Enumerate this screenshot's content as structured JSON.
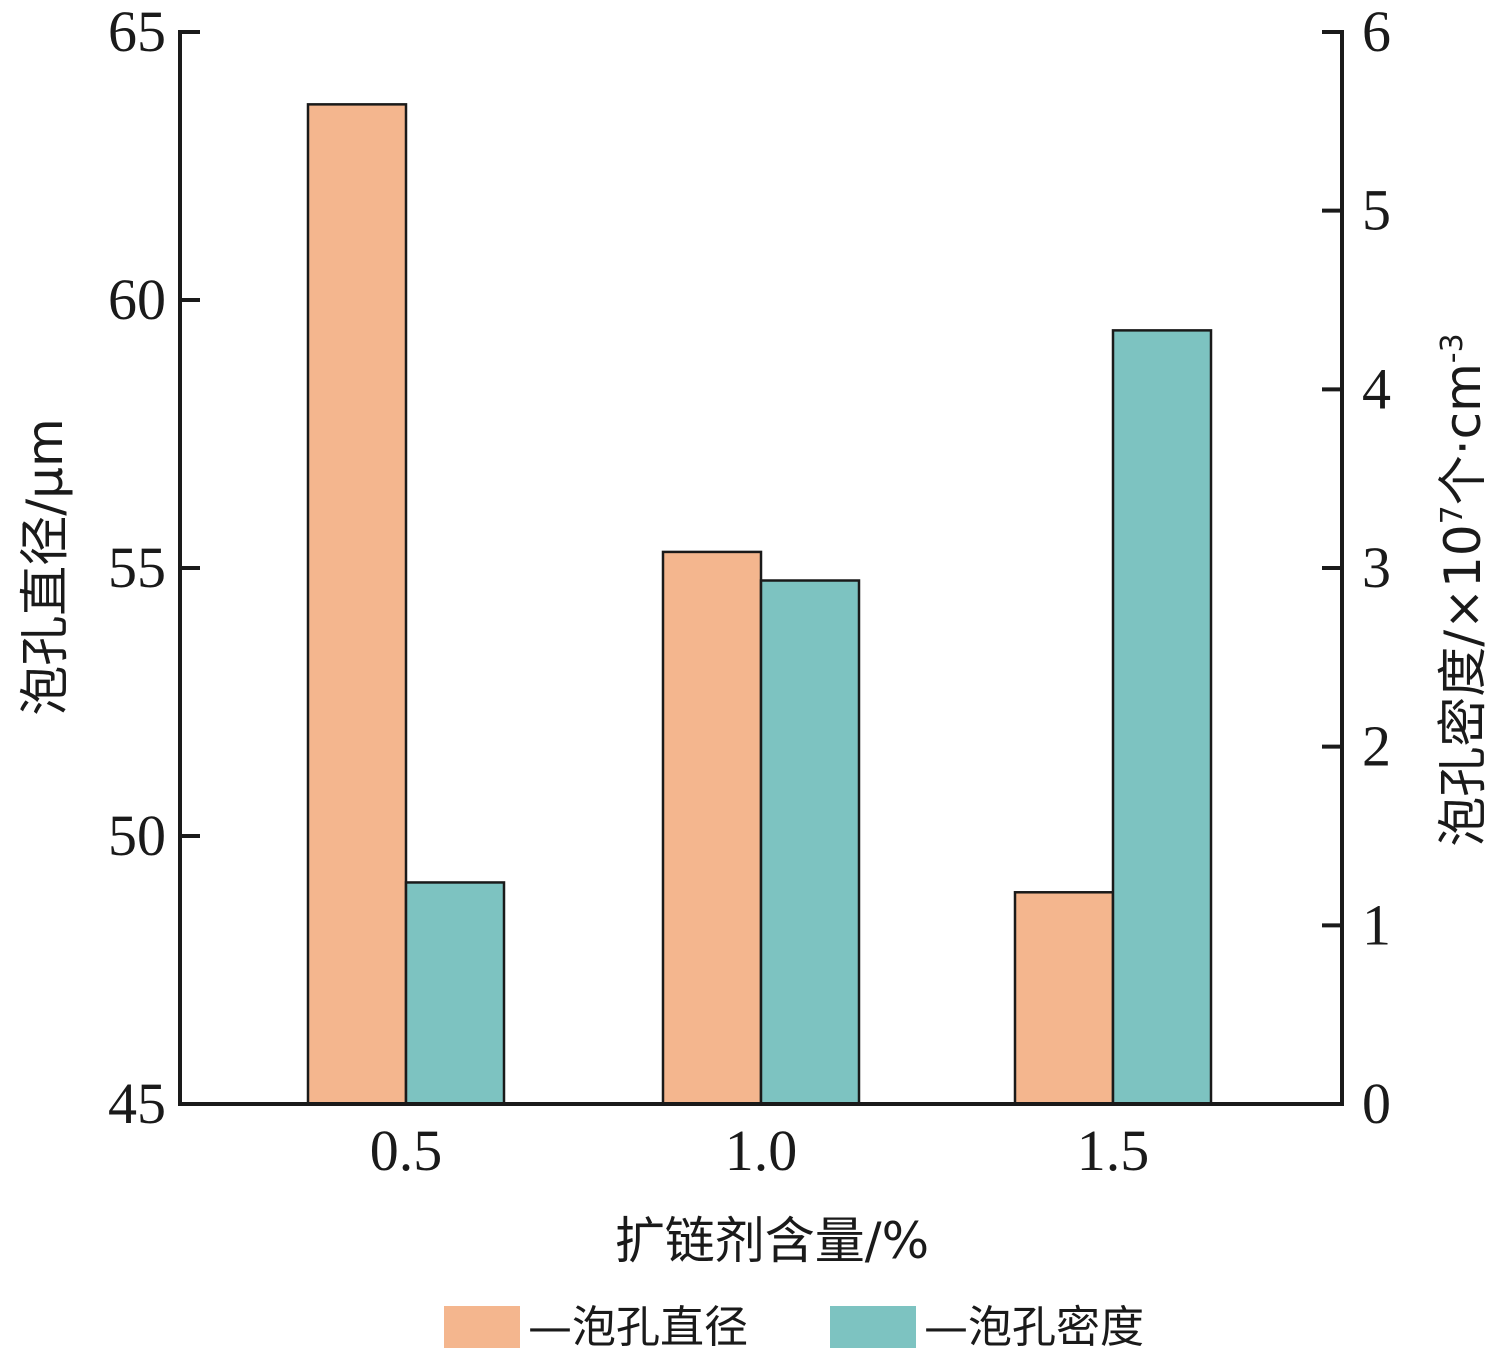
{
  "chart_data": {
    "type": "bar",
    "categories": [
      "0.5",
      "1.0",
      "1.5"
    ],
    "xlabel": "扩链剂含量/%",
    "ylabel_left": "泡孔直径/μm",
    "ylabel_right_base": "泡孔密度/×10",
    "ylabel_right_exp1": "7",
    "ylabel_right_mid": "个·cm",
    "ylabel_right_exp2": "-3",
    "ylim_left": [
      45,
      65
    ],
    "yticks_left": [
      "45",
      "50",
      "55",
      "60",
      "65"
    ],
    "ylim_right": [
      0,
      6
    ],
    "yticks_right": [
      "0",
      "1",
      "2",
      "3",
      "4",
      "5",
      "6"
    ],
    "series": [
      {
        "name": "—泡孔直径",
        "axis": "left",
        "color": "#F4B68E",
        "values": [
          63.65,
          55.3,
          48.95
        ]
      },
      {
        "name": "—泡孔密度",
        "axis": "right",
        "color": "#7DC3C1",
        "values": [
          1.24,
          2.93,
          4.33
        ]
      }
    ],
    "legend_position": "bottom-center",
    "grid": false
  }
}
